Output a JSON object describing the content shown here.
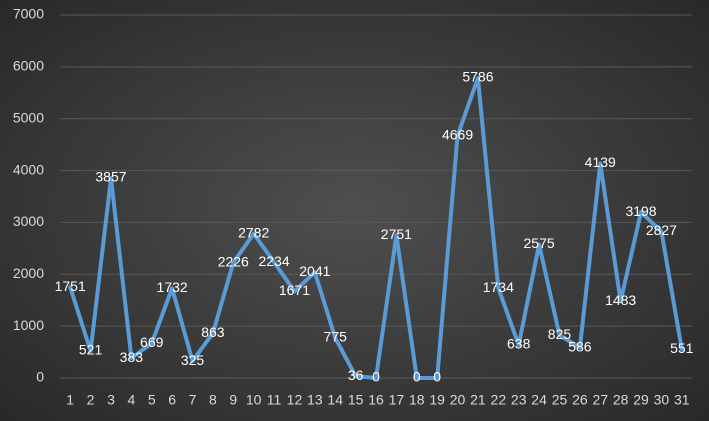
{
  "chart_data": {
    "type": "line",
    "categories": [
      "1",
      "2",
      "3",
      "4",
      "5",
      "6",
      "7",
      "8",
      "9",
      "10",
      "11",
      "12",
      "13",
      "14",
      "15",
      "16",
      "17",
      "18",
      "19",
      "20",
      "21",
      "22",
      "23",
      "24",
      "25",
      "26",
      "27",
      "28",
      "29",
      "30",
      "31"
    ],
    "values": [
      1751,
      521,
      3857,
      383,
      669,
      1732,
      325,
      863,
      2226,
      2782,
      2234,
      1671,
      2041,
      775,
      36,
      0,
      2751,
      0,
      0,
      4669,
      5786,
      1734,
      638,
      2575,
      825,
      586,
      4139,
      1483,
      3198,
      2827,
      551
    ],
    "color": "#5b9bd5",
    "ylim": [
      0,
      7000
    ],
    "yticks": [
      0,
      1000,
      2000,
      3000,
      4000,
      5000,
      6000,
      7000
    ],
    "grid": true
  }
}
